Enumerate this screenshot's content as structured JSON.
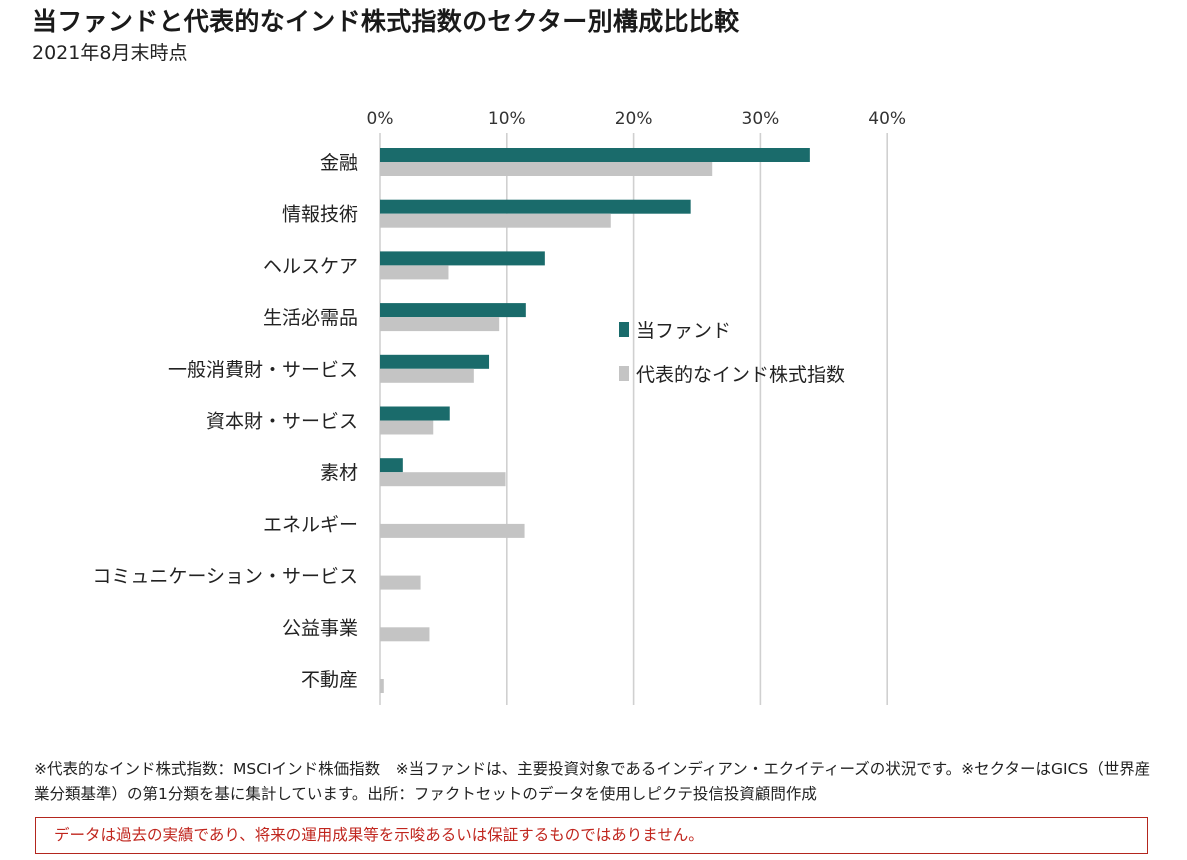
{
  "header": {
    "title": "当ファンドと代表的なインド株式指数のセクター別構成比比較",
    "subtitle": "2021年8月末時点"
  },
  "chart_data": {
    "type": "bar",
    "orientation": "horizontal",
    "categories": [
      "金融",
      "情報技術",
      "ヘルスケア",
      "生活必需品",
      "一般消費財・サービス",
      "資本財・サービス",
      "素材",
      "エネルギー",
      "コミュニケーション・サービス",
      "公益事業",
      "不動産"
    ],
    "series": [
      {
        "name": "当ファンド",
        "color": "#1a6b6b",
        "values": [
          33.9,
          24.5,
          13.0,
          11.5,
          8.6,
          5.5,
          1.8,
          0,
          0,
          0,
          0
        ]
      },
      {
        "name": "代表的なインド株式指数",
        "color": "#c4c4c4",
        "values": [
          26.2,
          18.2,
          5.4,
          9.4,
          7.4,
          4.2,
          9.9,
          11.4,
          3.2,
          3.9,
          0.3
        ]
      }
    ],
    "xlim": [
      0,
      40
    ],
    "ticks": [
      0,
      10,
      20,
      30,
      40
    ],
    "tick_labels": [
      "0%",
      "10%",
      "20%",
      "30%",
      "40%"
    ],
    "axis_position": "top",
    "grid": true,
    "legend_placement": "center-right"
  },
  "notes": {
    "text": "※代表的なインド株式指数：MSCIインド株価指数　※当ファンドは、主要投資対象であるインディアン・エクイティーズの状況です。※セクターはGICS（世界産業分類基準）の第1分類を基に集計しています。出所：ファクトセットのデータを使用しピクテ投信投資顧問作成"
  },
  "disclaimer": {
    "text": "データは過去の実績であり、将来の運用成果等を示唆あるいは保証するものではありません。"
  }
}
